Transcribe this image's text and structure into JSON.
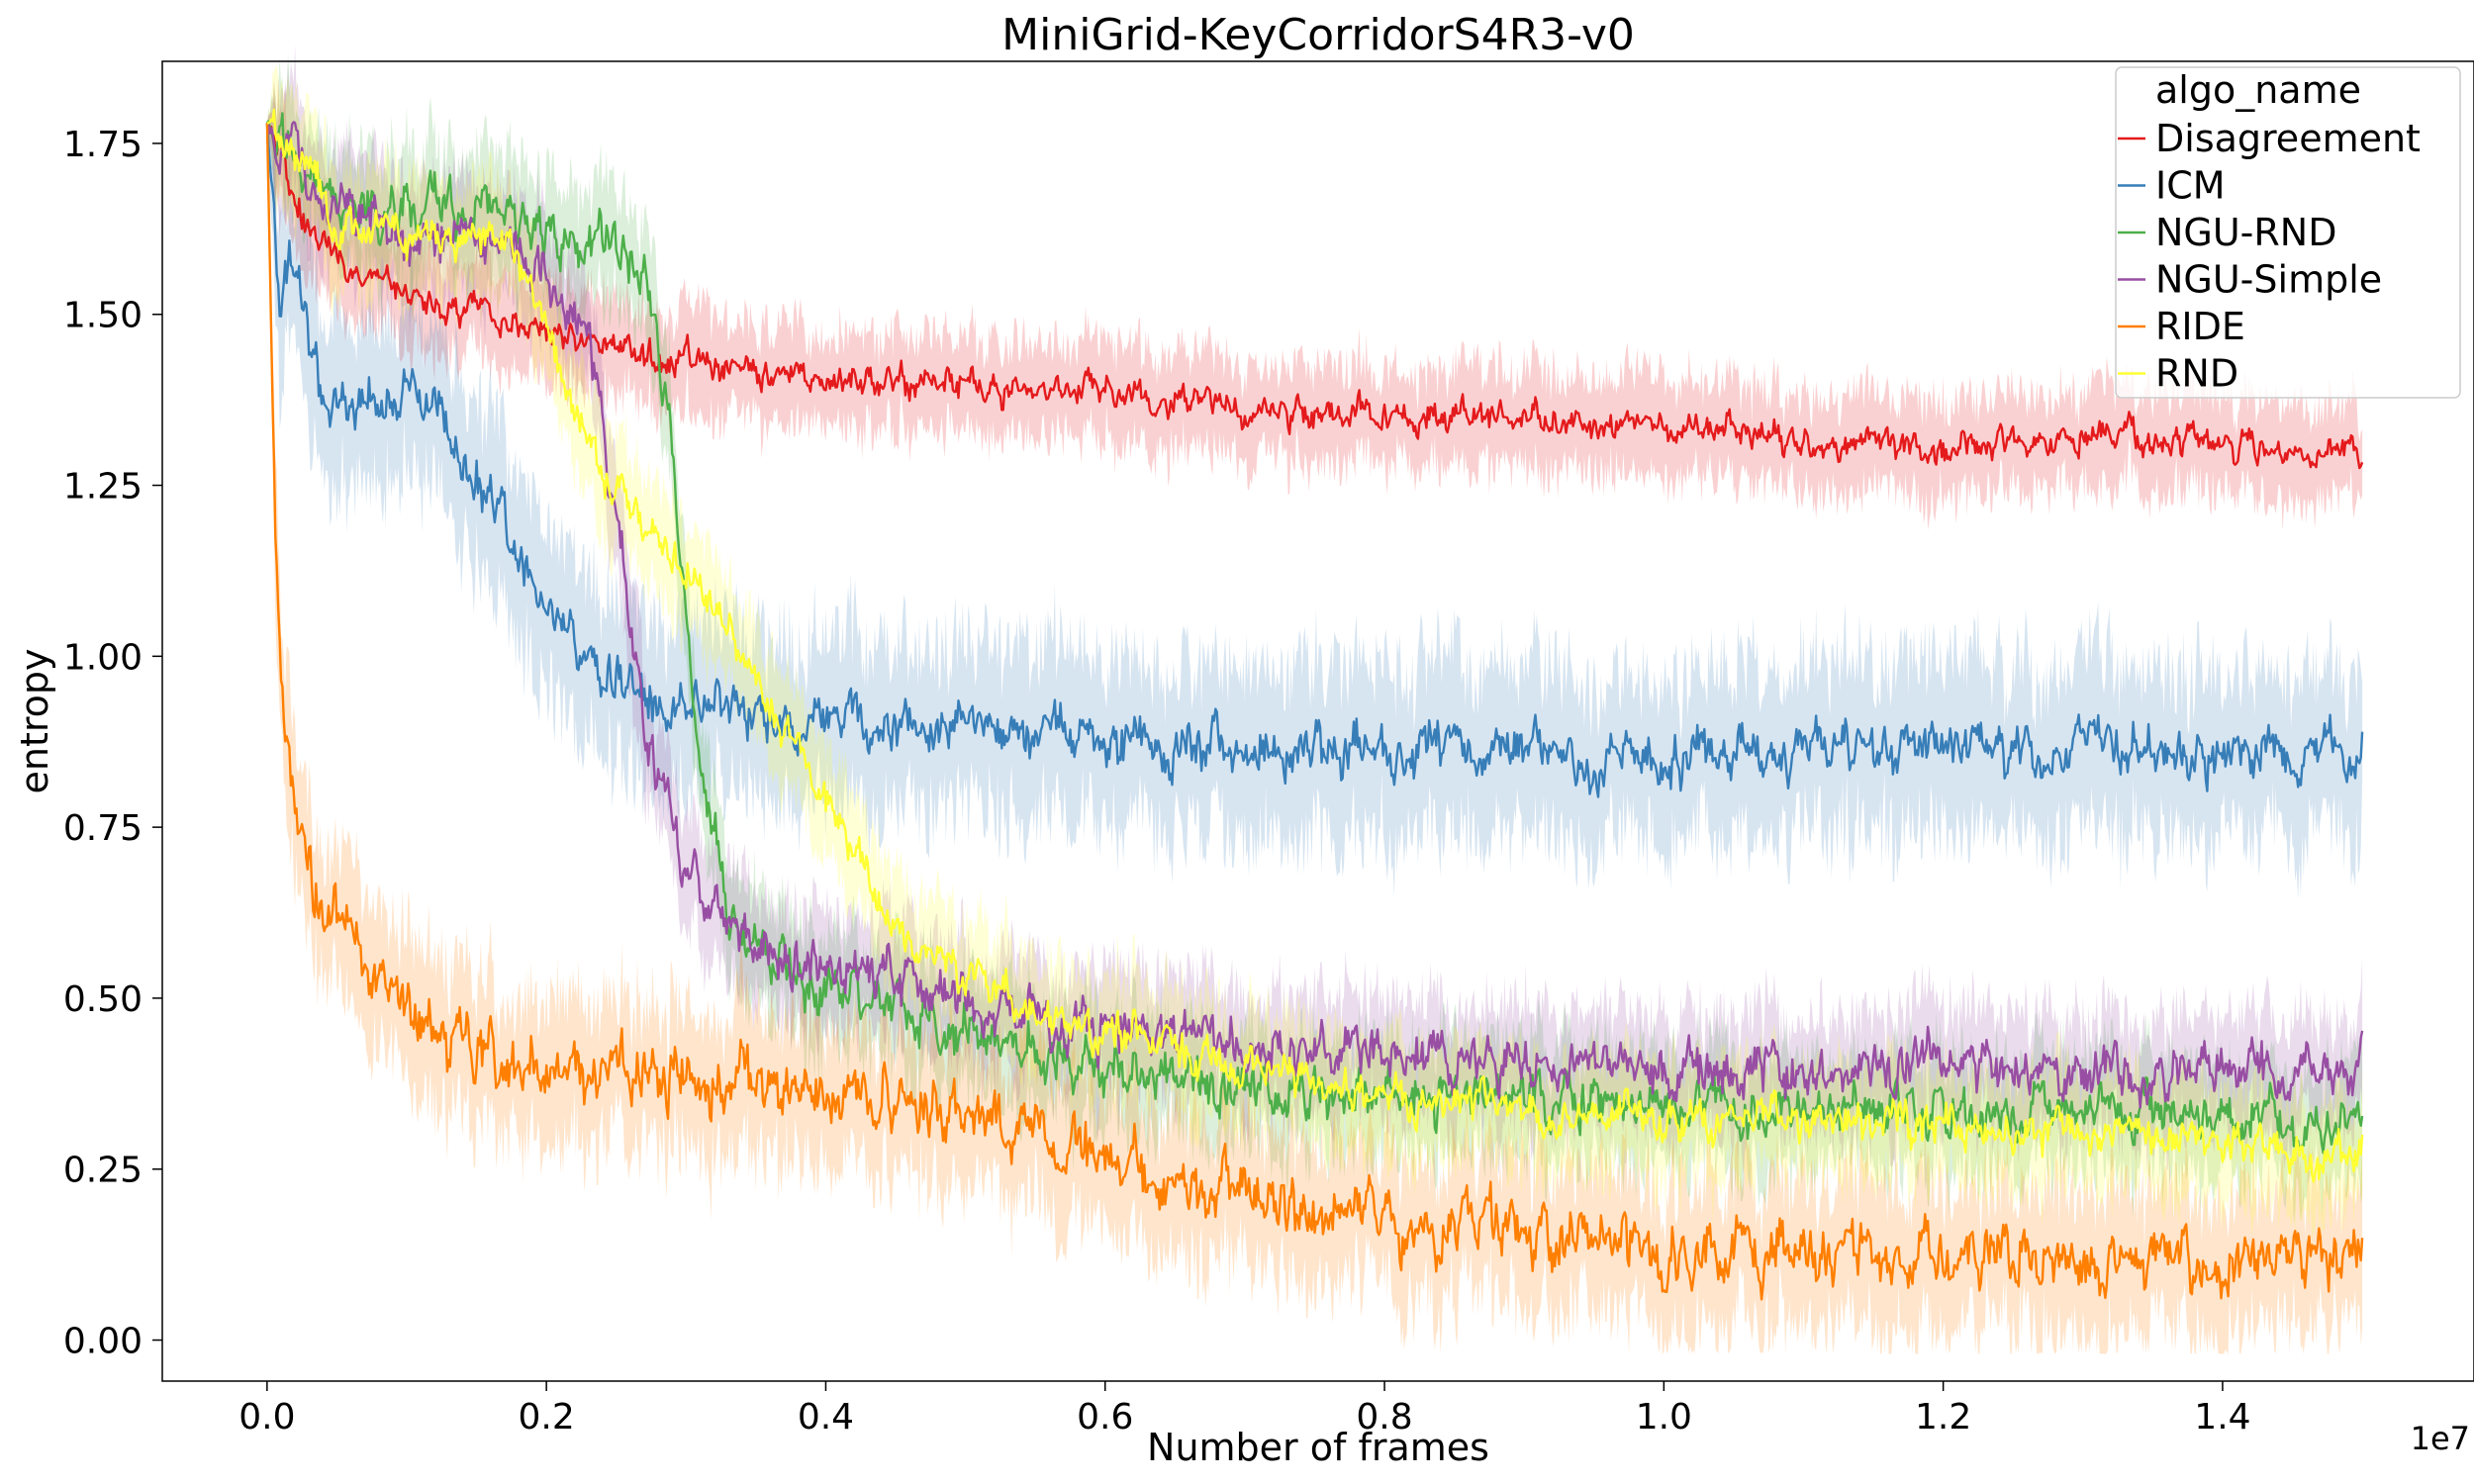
{
  "chart_data": {
    "type": "line",
    "title": "MiniGrid-KeyCorridorS4R3-v0",
    "xlabel": "Number of frames",
    "ylabel": "entropy",
    "x_offset_label": "1e7",
    "xlim": [
      -750000,
      15800000
    ],
    "ylim": [
      -0.06,
      1.87
    ],
    "x_ticks": [
      0,
      2000000,
      4000000,
      6000000,
      8000000,
      10000000,
      12000000,
      14000000
    ],
    "x_tick_labels": [
      "0.0",
      "0.2",
      "0.4",
      "0.6",
      "0.8",
      "1.0",
      "1.2",
      "1.4"
    ],
    "y_ticks": [
      0.0,
      0.25,
      0.5,
      0.75,
      1.0,
      1.25,
      1.5,
      1.75
    ],
    "y_tick_labels": [
      "0.00",
      "0.25",
      "0.50",
      "0.75",
      "1.00",
      "1.25",
      "1.50",
      "1.75"
    ],
    "grid": false,
    "legend": {
      "title": "algo_name",
      "placement": "top-right"
    },
    "series": [
      {
        "name": "Disagreement",
        "color": "#e41a1c",
        "x": [
          0,
          300000,
          700000,
          1000000,
          1500000,
          2000000,
          2500000,
          3000000,
          3500000,
          4000000,
          4500000,
          5000000,
          6000000,
          7000000,
          8000000,
          9000000,
          10000000,
          11000000,
          12000000,
          13000000,
          14000000,
          15000000
        ],
        "y": [
          1.78,
          1.62,
          1.56,
          1.53,
          1.5,
          1.48,
          1.45,
          1.43,
          1.41,
          1.39,
          1.4,
          1.4,
          1.39,
          1.36,
          1.35,
          1.35,
          1.33,
          1.32,
          1.3,
          1.32,
          1.31,
          1.29
        ],
        "band": 0.07,
        "noise": 0.03
      },
      {
        "name": "ICM",
        "color": "#377eb8",
        "x": [
          0,
          100000,
          200000,
          400000,
          700000,
          1000000,
          1300000,
          1600000,
          2000000,
          2300000,
          2700000,
          3200000,
          4000000,
          5000000,
          6000000,
          7000000,
          8000000,
          9000000,
          10000000,
          11000000,
          12000000,
          13000000,
          14000000,
          15000000
        ],
        "y": [
          1.78,
          1.5,
          1.58,
          1.38,
          1.36,
          1.4,
          1.33,
          1.22,
          1.06,
          0.99,
          0.95,
          0.92,
          0.9,
          0.9,
          0.88,
          0.87,
          0.86,
          0.86,
          0.85,
          0.86,
          0.86,
          0.86,
          0.86,
          0.86
        ],
        "band": 0.12,
        "noise": 0.05
      },
      {
        "name": "NGU-RND",
        "color": "#4daf4a",
        "x": [
          0,
          500000,
          1000000,
          1500000,
          2000000,
          2500000,
          2700000,
          2900000,
          3100000,
          3300000,
          3600000,
          4000000,
          5000000,
          6000000,
          7000000,
          8000000,
          9000000,
          10000000,
          11000000,
          12000000,
          13000000,
          14000000,
          15000000
        ],
        "y": [
          1.78,
          1.66,
          1.65,
          1.64,
          1.62,
          1.6,
          1.58,
          1.3,
          0.85,
          0.62,
          0.55,
          0.52,
          0.45,
          0.4,
          0.37,
          0.36,
          0.35,
          0.34,
          0.34,
          0.33,
          0.33,
          0.32,
          0.31
        ],
        "band": 0.08,
        "noise": 0.05
      },
      {
        "name": "NGU-Simple",
        "color": "#984ea3",
        "x": [
          0,
          500000,
          1000000,
          1500000,
          1800000,
          2000000,
          2300000,
          2500000,
          2700000,
          3000000,
          3500000,
          4000000,
          5000000,
          6000000,
          7000000,
          8000000,
          9000000,
          10000000,
          11000000,
          12000000,
          13000000,
          14000000,
          15000000
        ],
        "y": [
          1.78,
          1.65,
          1.62,
          1.6,
          1.58,
          1.56,
          1.45,
          1.2,
          0.9,
          0.68,
          0.58,
          0.55,
          0.5,
          0.45,
          0.43,
          0.42,
          0.41,
          0.4,
          0.4,
          0.4,
          0.39,
          0.39,
          0.39
        ],
        "band": 0.08,
        "noise": 0.05
      },
      {
        "name": "RIDE",
        "color": "#ff7f00",
        "x": [
          0,
          50000,
          100000,
          200000,
          300000,
          500000,
          1000000,
          1500000,
          2000000,
          2500000,
          3000000,
          4000000,
          5000000,
          6000000,
          7000000,
          8000000,
          9000000,
          10000000,
          11000000,
          12000000,
          13000000,
          14000000,
          15000000
        ],
        "y": [
          1.78,
          1.3,
          0.95,
          0.78,
          0.68,
          0.6,
          0.48,
          0.42,
          0.4,
          0.4,
          0.38,
          0.36,
          0.33,
          0.26,
          0.2,
          0.17,
          0.15,
          0.13,
          0.13,
          0.13,
          0.13,
          0.13,
          0.12
        ],
        "band": 0.1,
        "noise": 0.06
      },
      {
        "name": "RND",
        "color": "#ffff33",
        "x": [
          0,
          500000,
          1000000,
          1500000,
          1800000,
          2000000,
          2200000,
          2500000,
          3000000,
          3500000,
          4000000,
          4500000,
          5000000,
          6000000,
          7000000,
          8000000,
          9000000,
          10000000,
          11000000,
          12000000,
          13000000,
          14000000,
          15000000
        ],
        "y": [
          1.78,
          1.64,
          1.62,
          1.62,
          1.58,
          1.48,
          1.35,
          1.25,
          1.12,
          0.98,
          0.78,
          0.6,
          0.53,
          0.45,
          0.4,
          0.35,
          0.34,
          0.33,
          0.32,
          0.31,
          0.3,
          0.29,
          0.27
        ],
        "band": 0.08,
        "noise": 0.04
      }
    ]
  }
}
